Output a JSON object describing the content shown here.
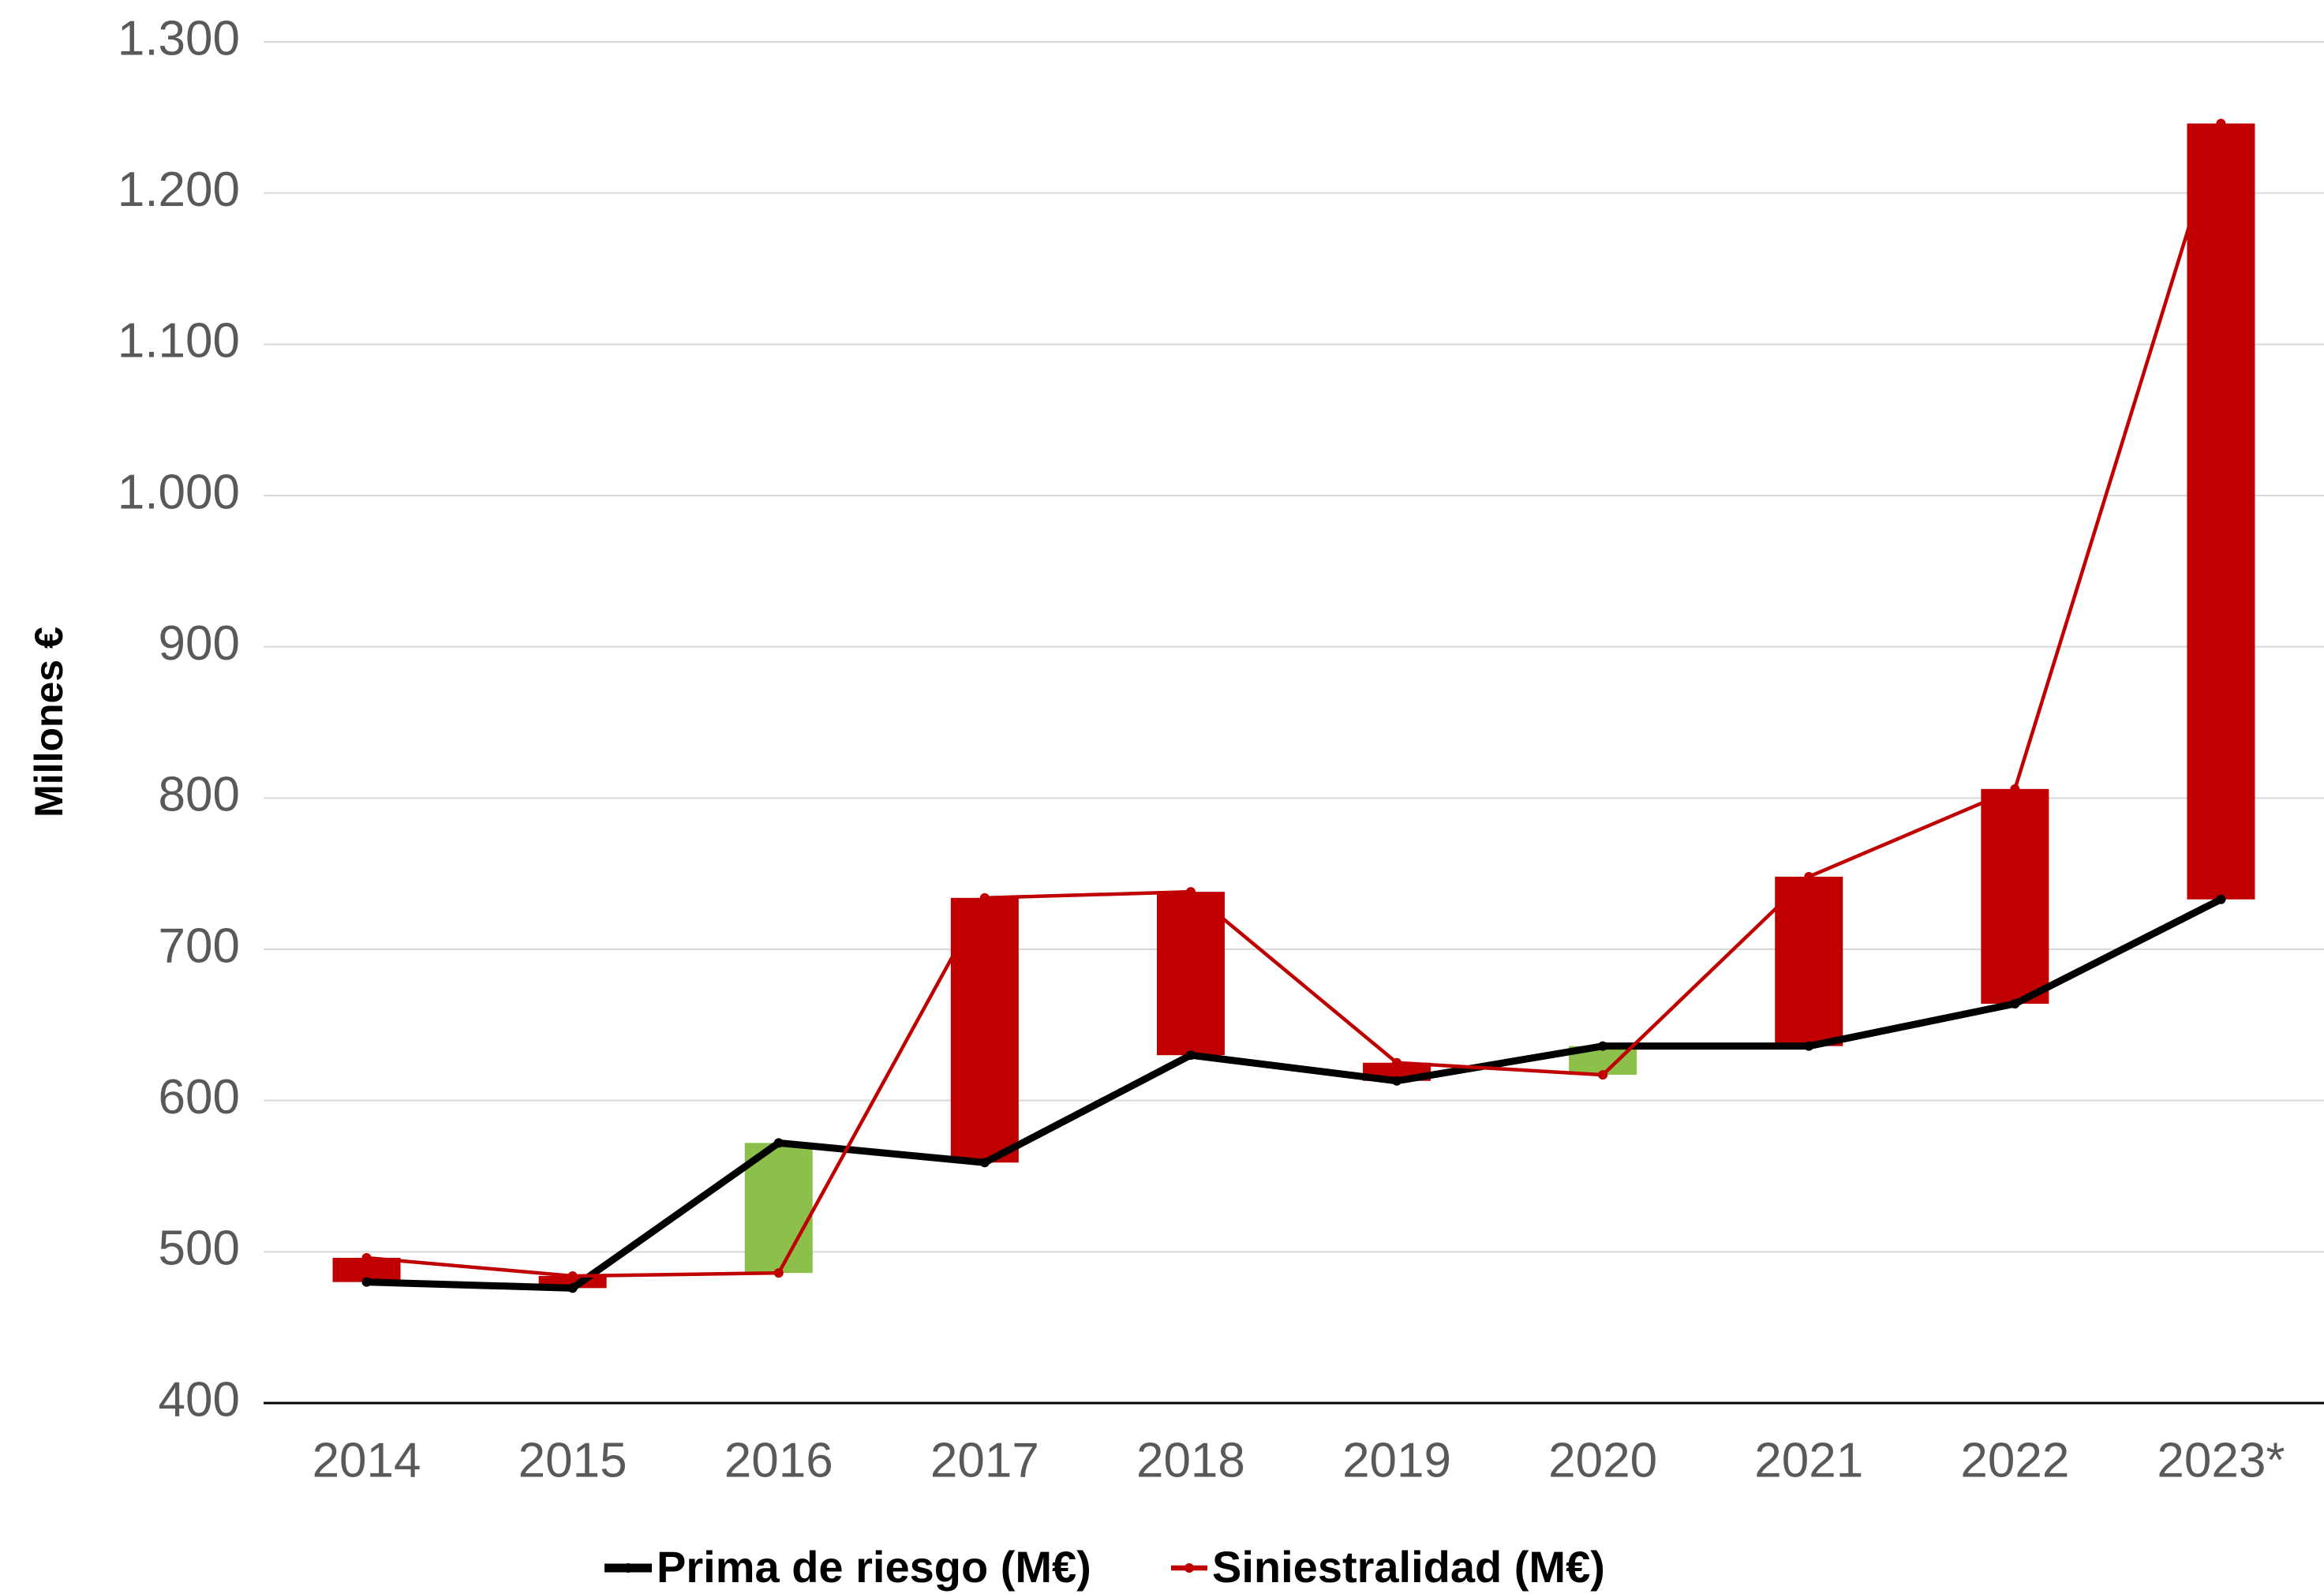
{
  "chart_data": {
    "type": "line",
    "y_label": "Millones €",
    "categories": [
      "2014",
      "2015",
      "2016",
      "2017",
      "2018",
      "2019",
      "2020",
      "2021",
      "2022",
      "2023*"
    ],
    "series": [
      {
        "name": "Prima de riesgo (M€)",
        "color": "#000000",
        "values": [
          480,
          476,
          572,
          559,
          630,
          613,
          636,
          636,
          664,
          733
        ]
      },
      {
        "name": "Siniestralidad (M€)",
        "color": "#c00000",
        "values": [
          496,
          484,
          486,
          734,
          738,
          625,
          617,
          748,
          806,
          1246
        ]
      }
    ],
    "updown_bars": true,
    "up_bar_color": "#c00000",
    "down_bar_color": "#8dc04a",
    "ylim": [
      400,
      1300
    ],
    "yticks": [
      400,
      500,
      600,
      700,
      800,
      900,
      {
        "value": 1000,
        "label": "1.000"
      },
      {
        "value": 1100,
        "label": "1.100"
      },
      {
        "value": 1200,
        "label": "1.200"
      },
      {
        "value": 1300,
        "label": "1.300"
      }
    ],
    "grid": true,
    "legend": "bottom"
  }
}
